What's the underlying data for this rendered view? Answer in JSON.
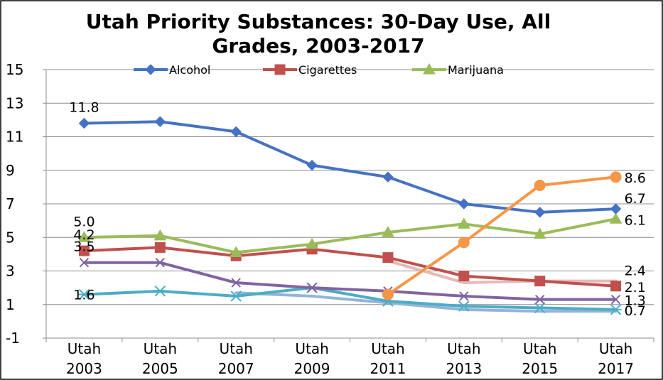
{
  "chart_data": {
    "type": "line",
    "title_lines": [
      "Utah Priority Substances: 30-Day Use, All",
      "Grades, 2003-2017"
    ],
    "categories": [
      [
        "Utah",
        "2003"
      ],
      [
        "Utah",
        "2005"
      ],
      [
        "Utah",
        "2007"
      ],
      [
        "Utah",
        "2009"
      ],
      [
        "Utah",
        "2011"
      ],
      [
        "Utah",
        "2013"
      ],
      [
        "Utah",
        "2015"
      ],
      [
        "Utah",
        "2017"
      ]
    ],
    "ylim": [
      -1,
      15
    ],
    "yticks": [
      -1,
      1,
      3,
      5,
      7,
      9,
      11,
      13,
      15
    ],
    "ytick_labels": [
      "-1",
      "1",
      "3",
      "5",
      "7",
      "9",
      "11",
      "13",
      "15"
    ],
    "xlabel": "",
    "ylabel": "",
    "grid": "horizontal",
    "legend_position": "top",
    "series": [
      {
        "name": "Alcohol",
        "color": "#4472C4",
        "marker": "diamond",
        "in_legend": true,
        "values": [
          11.8,
          11.9,
          11.3,
          9.3,
          8.6,
          7.0,
          6.5,
          6.7
        ]
      },
      {
        "name": "Cigarettes",
        "color": "#C0504D",
        "marker": "square",
        "in_legend": true,
        "values": [
          4.2,
          4.4,
          3.9,
          4.3,
          3.8,
          2.7,
          2.4,
          2.1
        ]
      },
      {
        "name": "Marijuana",
        "color": "#9BBB59",
        "marker": "triangle",
        "in_legend": true,
        "values": [
          5.0,
          5.1,
          4.1,
          4.6,
          5.3,
          5.8,
          5.2,
          6.1
        ]
      },
      {
        "name": "",
        "color": "#8064A2",
        "marker": "x",
        "in_legend": false,
        "values": [
          3.5,
          3.5,
          2.3,
          2.0,
          1.8,
          1.5,
          1.3,
          1.3
        ]
      },
      {
        "name": "",
        "color": "#4BACC6",
        "marker": "star",
        "in_legend": false,
        "values": [
          1.6,
          1.8,
          1.5,
          2.0,
          1.2,
          0.9,
          0.8,
          0.7
        ]
      },
      {
        "name": "",
        "color": "#F79646",
        "marker": "circle",
        "in_legend": false,
        "values": [
          null,
          null,
          null,
          null,
          1.6,
          4.7,
          8.1,
          8.6
        ]
      },
      {
        "name": "",
        "color": "#95B3D7",
        "marker": "none",
        "in_legend": false,
        "values": [
          null,
          null,
          1.7,
          1.5,
          1.1,
          0.7,
          0.6,
          0.6
        ]
      },
      {
        "name": "",
        "color": "#E6B9B8",
        "marker": "none",
        "in_legend": false,
        "values": [
          null,
          null,
          null,
          null,
          3.6,
          2.3,
          2.4,
          2.4
        ]
      }
    ],
    "data_labels": [
      {
        "text": "11.8",
        "series": 0,
        "index": 0,
        "pos": "above"
      },
      {
        "text": "5.0",
        "series": 2,
        "index": 0,
        "pos": "above"
      },
      {
        "text": "4.2",
        "series": 1,
        "index": 0,
        "pos": "above"
      },
      {
        "text": "3.5",
        "series": 3,
        "index": 0,
        "pos": "above"
      },
      {
        "text": "1.6",
        "series": 4,
        "index": 0,
        "pos": "on"
      },
      {
        "text": "8.6",
        "series": 5,
        "index": 7,
        "pos": "right"
      },
      {
        "text": "6.7",
        "series": 0,
        "index": 7,
        "pos": "right-above"
      },
      {
        "text": "6.1",
        "series": 2,
        "index": 7,
        "pos": "right"
      },
      {
        "text": "2.4",
        "series": 7,
        "index": 7,
        "pos": "right-above"
      },
      {
        "text": "2.1",
        "series": 1,
        "index": 7,
        "pos": "right"
      },
      {
        "text": "1.3",
        "series": 3,
        "index": 7,
        "pos": "right"
      },
      {
        "text": "0.7",
        "series": 4,
        "index": 7,
        "pos": "right"
      }
    ]
  }
}
